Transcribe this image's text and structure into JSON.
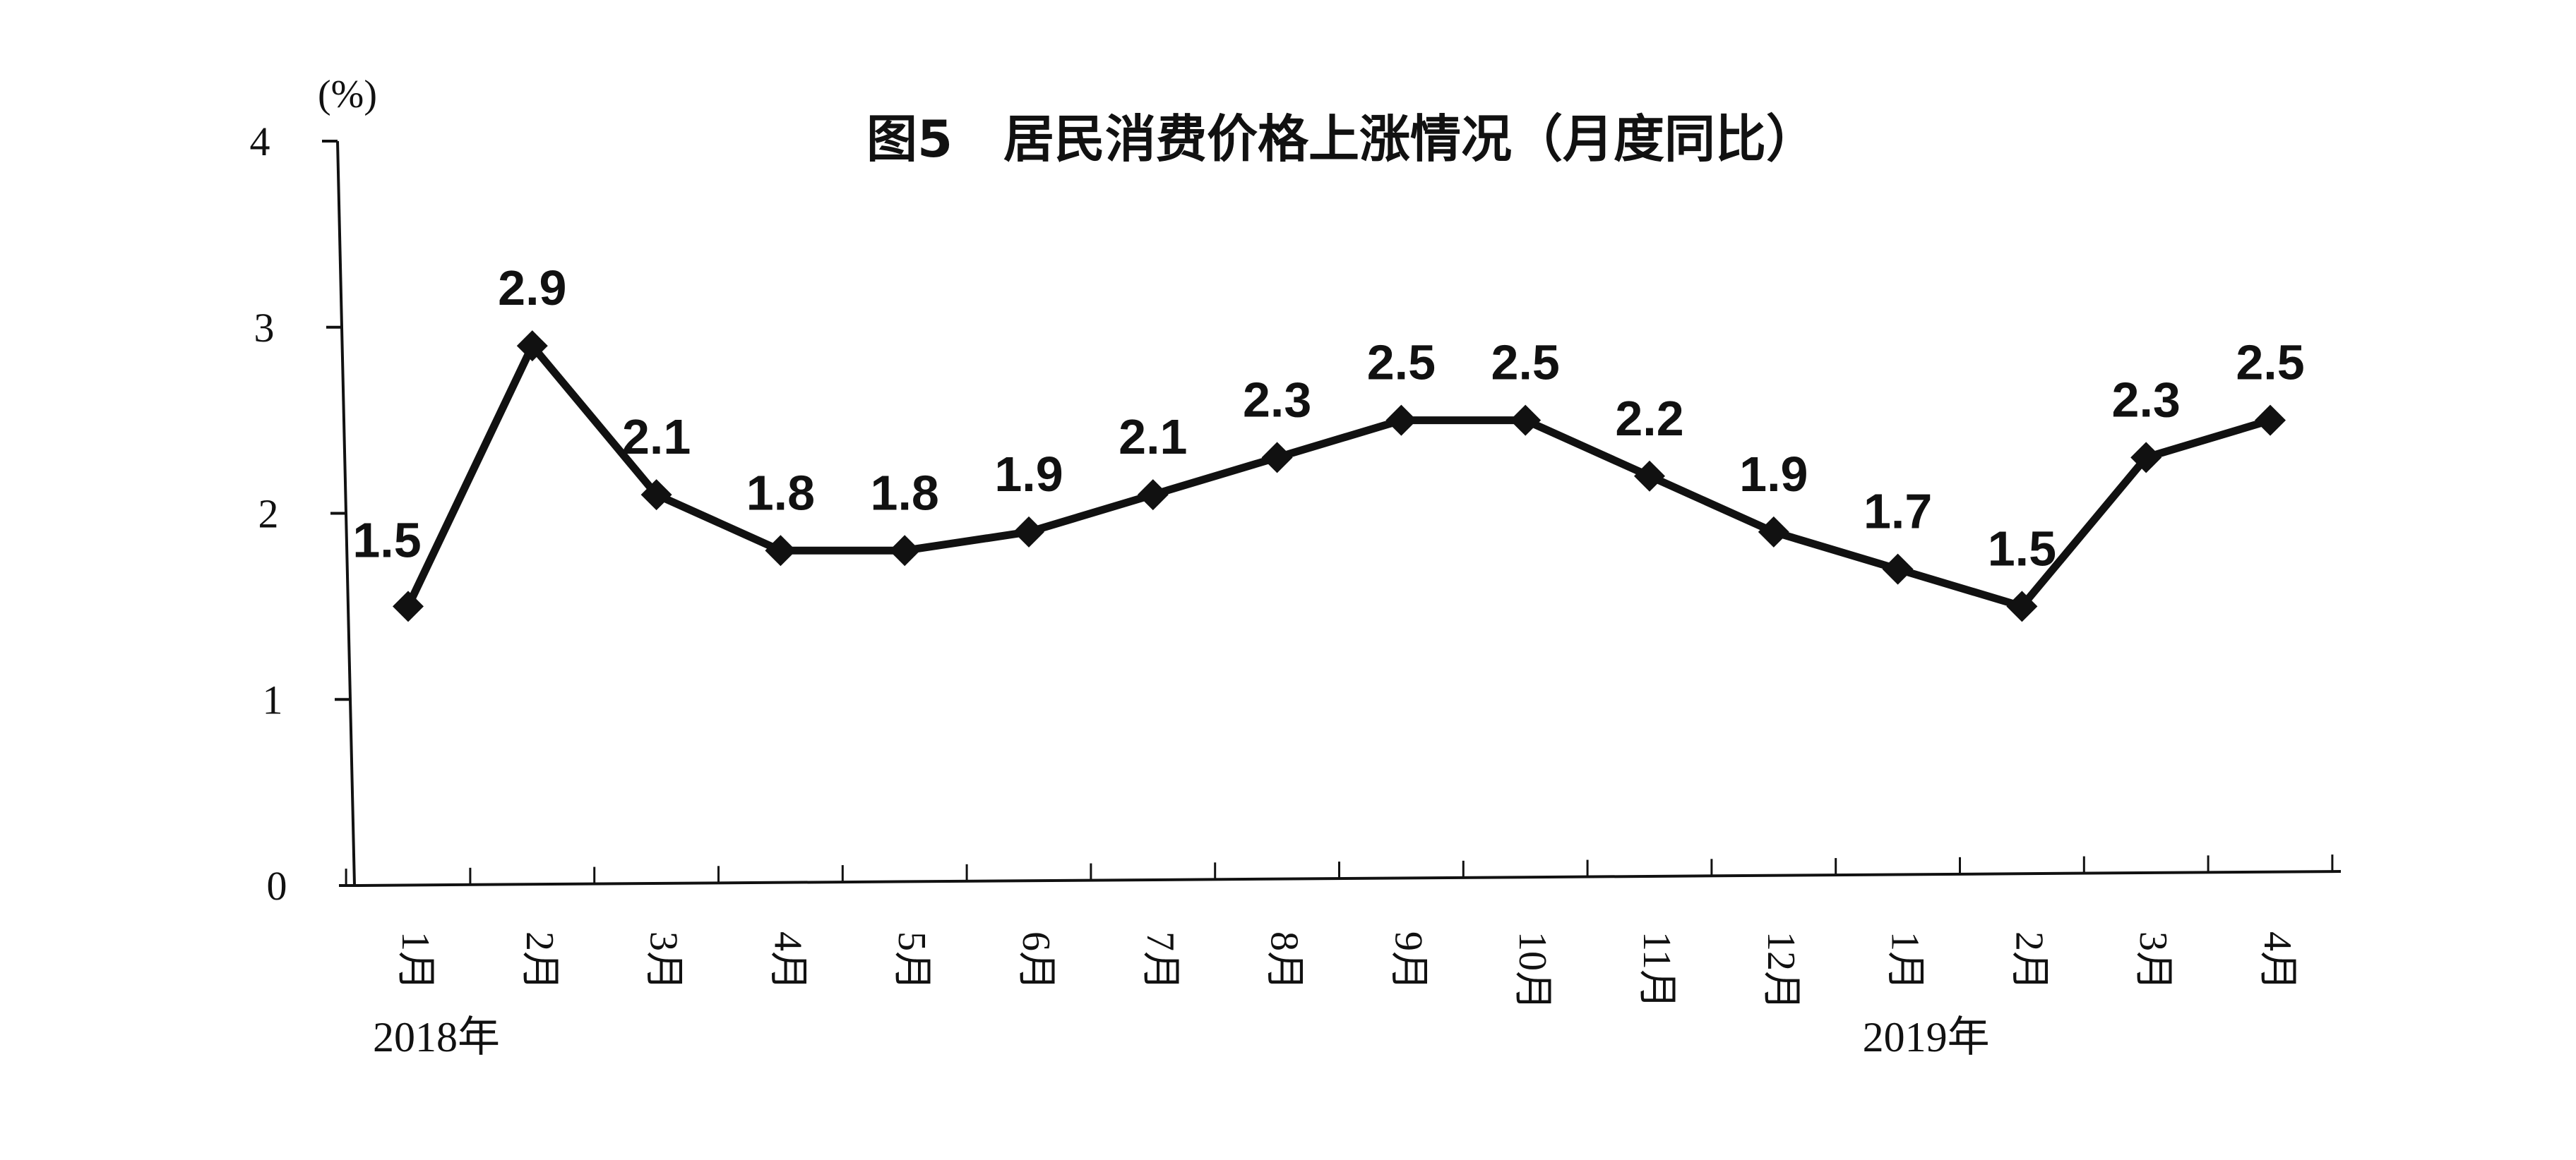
{
  "chart_data": {
    "type": "line",
    "title": "图5　居民消费价格上涨情况（月度同比）",
    "ylabel": "(%)",
    "ylim": [
      0,
      4
    ],
    "yticks": [
      "0",
      "1",
      "2",
      "3",
      "4"
    ],
    "categories": [
      "1月",
      "2月",
      "3月",
      "4月",
      "5月",
      "6月",
      "7月",
      "8月",
      "9月",
      "10月",
      "11月",
      "12月",
      "1月",
      "2月",
      "3月",
      "4月"
    ],
    "year_labels": [
      {
        "text": "2018年",
        "category_index": 0
      },
      {
        "text": "2019年",
        "category_index": 12
      }
    ],
    "series": [
      {
        "values": [
          1.5,
          2.9,
          2.1,
          1.8,
          1.8,
          1.9,
          2.1,
          2.3,
          2.5,
          2.5,
          2.2,
          1.9,
          1.7,
          1.5,
          2.3,
          2.5
        ]
      }
    ],
    "value_labels": [
      "1.5",
      "2.9",
      "2.1",
      "1.8",
      "1.8",
      "1.9",
      "2.1",
      "2.3",
      "2.5",
      "2.5",
      "2.2",
      "1.9",
      "1.7",
      "1.5",
      "2.3",
      "2.5"
    ],
    "grid": false,
    "legend": "none",
    "line_color": "#111111",
    "marker": "diamond"
  }
}
